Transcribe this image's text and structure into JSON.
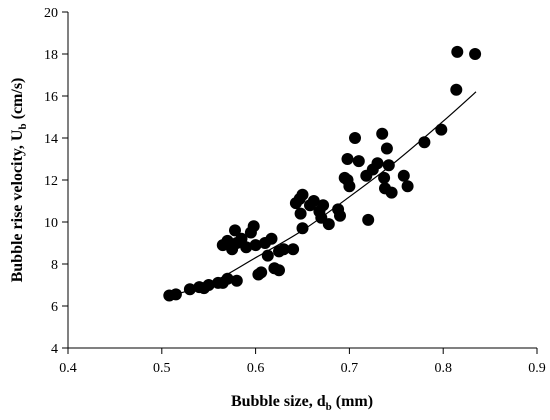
{
  "chart_data": {
    "type": "scatter",
    "xlabel": {
      "main": "Bubble size, d",
      "sub": "b",
      "unit": " (mm)"
    },
    "ylabel": {
      "main": "Bubble rise velocity, U",
      "sub": "b",
      "unit": " (cm/s)"
    },
    "xlim": [
      0.4,
      0.9
    ],
    "ylim": [
      4,
      20
    ],
    "xticks": [
      0.4,
      0.5,
      0.6,
      0.7,
      0.8,
      0.9
    ],
    "xtick_labels": [
      "0.4",
      "0.5",
      "0.6",
      "0.7",
      "0.8",
      "0.9"
    ],
    "yticks": [
      4,
      6,
      8,
      10,
      12,
      14,
      16,
      18,
      20
    ],
    "ytick_labels": [
      "4",
      "6",
      "8",
      "10",
      "12",
      "14",
      "16",
      "18",
      "20"
    ],
    "grid": false,
    "legend": "none",
    "marker_color": "#000000",
    "points": [
      {
        "x": 0.508,
        "y": 6.5
      },
      {
        "x": 0.515,
        "y": 6.55
      },
      {
        "x": 0.53,
        "y": 6.8
      },
      {
        "x": 0.54,
        "y": 6.9
      },
      {
        "x": 0.545,
        "y": 6.85
      },
      {
        "x": 0.55,
        "y": 7.0
      },
      {
        "x": 0.56,
        "y": 7.1
      },
      {
        "x": 0.565,
        "y": 7.1
      },
      {
        "x": 0.57,
        "y": 7.3
      },
      {
        "x": 0.58,
        "y": 7.2
      },
      {
        "x": 0.565,
        "y": 8.9
      },
      {
        "x": 0.57,
        "y": 9.1
      },
      {
        "x": 0.575,
        "y": 8.7
      },
      {
        "x": 0.578,
        "y": 9.6
      },
      {
        "x": 0.58,
        "y": 9.0
      },
      {
        "x": 0.585,
        "y": 9.2
      },
      {
        "x": 0.59,
        "y": 8.8
      },
      {
        "x": 0.595,
        "y": 9.5
      },
      {
        "x": 0.598,
        "y": 9.8
      },
      {
        "x": 0.6,
        "y": 8.9
      },
      {
        "x": 0.603,
        "y": 7.5
      },
      {
        "x": 0.606,
        "y": 7.6
      },
      {
        "x": 0.61,
        "y": 9.0
      },
      {
        "x": 0.613,
        "y": 8.4
      },
      {
        "x": 0.617,
        "y": 9.2
      },
      {
        "x": 0.62,
        "y": 7.8
      },
      {
        "x": 0.625,
        "y": 7.7
      },
      {
        "x": 0.625,
        "y": 8.6
      },
      {
        "x": 0.63,
        "y": 8.7
      },
      {
        "x": 0.64,
        "y": 8.7
      },
      {
        "x": 0.643,
        "y": 10.9
      },
      {
        "x": 0.647,
        "y": 11.1
      },
      {
        "x": 0.65,
        "y": 11.3
      },
      {
        "x": 0.648,
        "y": 10.4
      },
      {
        "x": 0.65,
        "y": 9.7
      },
      {
        "x": 0.658,
        "y": 10.8
      },
      {
        "x": 0.662,
        "y": 11.0
      },
      {
        "x": 0.668,
        "y": 10.5
      },
      {
        "x": 0.67,
        "y": 10.2
      },
      {
        "x": 0.672,
        "y": 10.8
      },
      {
        "x": 0.678,
        "y": 9.9
      },
      {
        "x": 0.688,
        "y": 10.6
      },
      {
        "x": 0.69,
        "y": 10.3
      },
      {
        "x": 0.695,
        "y": 12.1
      },
      {
        "x": 0.698,
        "y": 12.0
      },
      {
        "x": 0.698,
        "y": 13.0
      },
      {
        "x": 0.7,
        "y": 11.7
      },
      {
        "x": 0.706,
        "y": 14.0
      },
      {
        "x": 0.71,
        "y": 12.9
      },
      {
        "x": 0.718,
        "y": 12.2
      },
      {
        "x": 0.72,
        "y": 10.1
      },
      {
        "x": 0.725,
        "y": 12.5
      },
      {
        "x": 0.73,
        "y": 12.8
      },
      {
        "x": 0.735,
        "y": 14.2
      },
      {
        "x": 0.737,
        "y": 12.1
      },
      {
        "x": 0.738,
        "y": 11.6
      },
      {
        "x": 0.74,
        "y": 13.5
      },
      {
        "x": 0.742,
        "y": 12.7
      },
      {
        "x": 0.745,
        "y": 11.4
      },
      {
        "x": 0.758,
        "y": 12.2
      },
      {
        "x": 0.762,
        "y": 11.7
      },
      {
        "x": 0.78,
        "y": 13.8
      },
      {
        "x": 0.798,
        "y": 14.4
      },
      {
        "x": 0.814,
        "y": 16.3
      },
      {
        "x": 0.815,
        "y": 18.1
      },
      {
        "x": 0.834,
        "y": 18.0
      }
    ],
    "fit_line": {
      "x": [
        0.505,
        0.55,
        0.6,
        0.65,
        0.7,
        0.75,
        0.8,
        0.835
      ],
      "y": [
        6.45,
        7.05,
        8.3,
        9.6,
        11.2,
        12.9,
        14.8,
        16.2
      ]
    }
  }
}
